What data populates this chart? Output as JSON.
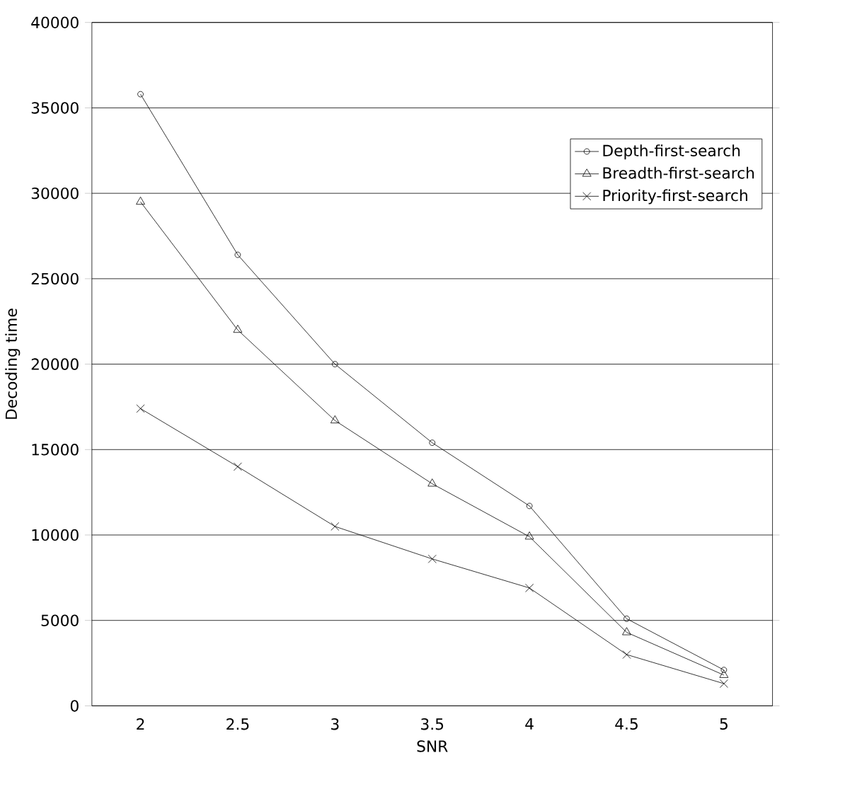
{
  "chart_data": {
    "type": "line",
    "xlabel": "SNR",
    "ylabel": "Decoding time",
    "categories": [
      "2",
      "2.5",
      "3",
      "3.5",
      "4",
      "4.5",
      "5"
    ],
    "series": [
      {
        "name": "Depth-first-search",
        "color": "#000000",
        "marker": "circle",
        "values": [
          35800,
          26400,
          20000,
          15400,
          11700,
          5100,
          2100
        ]
      },
      {
        "name": "Breadth-first-search",
        "color": "#000000",
        "marker": "triangle",
        "values": [
          29500,
          22000,
          16700,
          13000,
          9900,
          4300,
          1800
        ]
      },
      {
        "name": "Priority-first-search",
        "color": "#000000",
        "marker": "cross",
        "values": [
          17400,
          14000,
          10500,
          8600,
          6900,
          3000,
          1300
        ]
      }
    ],
    "ylim": [
      0,
      40000
    ],
    "yticks": [
      0,
      5000,
      10000,
      15000,
      20000,
      25000,
      30000,
      35000,
      40000
    ],
    "grid": "y",
    "legend": "top right",
    "line_style": "solid"
  }
}
